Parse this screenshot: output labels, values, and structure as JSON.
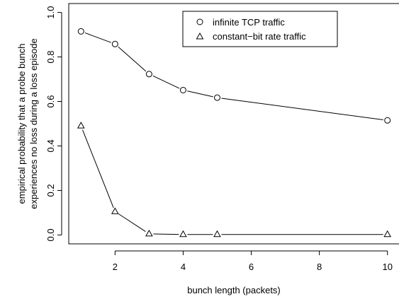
{
  "chart_data": {
    "type": "line",
    "xlabel": "bunch length (packets)",
    "ylabel": [
      "empirical probability that a probe bunch",
      "experiences no loss during a loss episode"
    ],
    "xlim": [
      0.64,
      10.36
    ],
    "ylim": [
      -0.04,
      1.04
    ],
    "x_ticks": [
      2,
      4,
      6,
      8,
      10
    ],
    "y_ticks": [
      0.0,
      0.2,
      0.4,
      0.6,
      0.8,
      1.0
    ],
    "y_tick_labels": [
      "0.0",
      "0.2",
      "0.4",
      "0.6",
      "0.8",
      "1.0"
    ],
    "grid": false,
    "legend_position": "top-right",
    "series": [
      {
        "name": "infinite TCP traffic",
        "marker": "circle",
        "x": [
          1,
          2,
          3,
          4,
          5,
          10
        ],
        "y": [
          0.915,
          0.858,
          0.723,
          0.651,
          0.617,
          0.515
        ]
      },
      {
        "name": "constant−bit rate traffic",
        "marker": "triangle",
        "x": [
          1,
          2,
          3,
          4,
          5,
          10
        ],
        "y": [
          0.49,
          0.105,
          0.005,
          0.002,
          0.002,
          0.002
        ]
      }
    ]
  }
}
